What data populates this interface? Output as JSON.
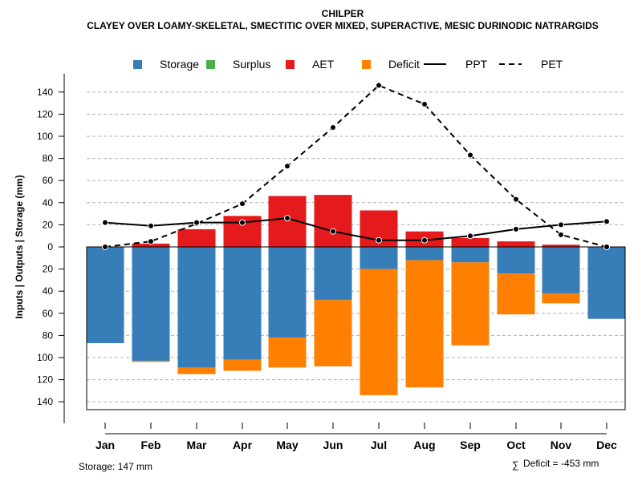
{
  "chart_data": {
    "type": "bar",
    "title": "CHILPER",
    "subtitle": "CLAYEY OVER LOAMY-SKELETAL, SMECTITIC OVER MIXED, SUPERACTIVE, MESIC DURINODIC NATRARGIDS",
    "ylabel": "Inputs | Outputs | Storage    (mm)",
    "ylim": [
      -147,
      150
    ],
    "yticks": [
      140,
      120,
      100,
      80,
      60,
      40,
      20,
      0,
      -20,
      -40,
      -60,
      -80,
      -100,
      -120,
      -140
    ],
    "ytick_labels": [
      "140",
      "120",
      "100",
      "80",
      "60",
      "40",
      "20",
      "0",
      "20",
      "40",
      "60",
      "80",
      "100",
      "120",
      "140"
    ],
    "categories": [
      "Jan",
      "Feb",
      "Mar",
      "Apr",
      "May",
      "Jun",
      "Jul",
      "Aug",
      "Sep",
      "Oct",
      "Nov",
      "Dec"
    ],
    "legend": [
      {
        "key": "storage",
        "label": "Storage",
        "kind": "box",
        "color": "#377EB8"
      },
      {
        "key": "surplus",
        "label": "Surplus",
        "kind": "box",
        "color": "#4DAF4A"
      },
      {
        "key": "aet",
        "label": "AET",
        "kind": "box",
        "color": "#E41A1C"
      },
      {
        "key": "deficit",
        "label": "Deficit",
        "kind": "box",
        "color": "#FF7F00"
      },
      {
        "key": "ppt",
        "label": "PPT",
        "kind": "solid",
        "color": "#000000"
      },
      {
        "key": "pet",
        "label": "PET",
        "kind": "dashed",
        "color": "#000000"
      }
    ],
    "series": [
      {
        "name": "AET",
        "color": "#E41A1C",
        "values": [
          0,
          3,
          16,
          28,
          46,
          47,
          33,
          14,
          8,
          5,
          2,
          0
        ]
      },
      {
        "name": "Storage",
        "color": "#377EB8",
        "values": [
          87,
          103,
          109,
          102,
          82,
          48,
          20,
          12,
          14,
          24,
          42,
          65
        ]
      },
      {
        "name": "Deficit",
        "color": "#FF7F00",
        "values": [
          0,
          1,
          6,
          10,
          27,
          60,
          114,
          115,
          75,
          37,
          9,
          0
        ]
      },
      {
        "name": "PPT",
        "color": "#000000",
        "values": [
          22,
          19,
          22,
          22,
          26,
          14,
          6,
          6,
          10,
          16,
          20,
          23
        ]
      },
      {
        "name": "PET",
        "color": "#000000",
        "values": [
          0,
          5,
          21,
          39,
          73,
          108,
          146,
          129,
          83,
          43,
          11,
          0
        ]
      }
    ],
    "footnote_left": "Storage: 147 mm",
    "footnote_right_symbol": "∑",
    "footnote_right": "Deficit = -453 mm"
  }
}
